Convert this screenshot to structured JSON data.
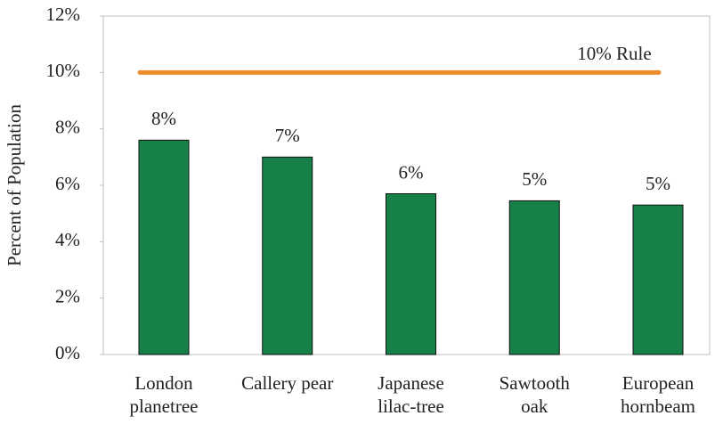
{
  "chart_data": {
    "type": "bar",
    "y_label": "Percent of Population",
    "categories": [
      "London\nplanetree",
      "Callery pear",
      "Japanese\nlilac-tree",
      "Sawtooth\noak",
      "European\nhornbeam"
    ],
    "values": [
      7.6,
      7.0,
      5.7,
      5.45,
      5.3
    ],
    "value_labels": [
      "8%",
      "7%",
      "6%",
      "5%",
      "5%"
    ],
    "color": "#168048",
    "ylim": [
      0,
      12
    ],
    "yticks": [
      {
        "value": 0,
        "label": "0%"
      },
      {
        "value": 2,
        "label": "2%"
      },
      {
        "value": 4,
        "label": "4%"
      },
      {
        "value": 6,
        "label": "6%"
      },
      {
        "value": 8,
        "label": "8%"
      },
      {
        "value": 10,
        "label": "10%"
      },
      {
        "value": 12,
        "label": "12%"
      }
    ],
    "reference_line": {
      "value": 10,
      "label": "10% Rule",
      "color": "#ed8b2d"
    }
  }
}
